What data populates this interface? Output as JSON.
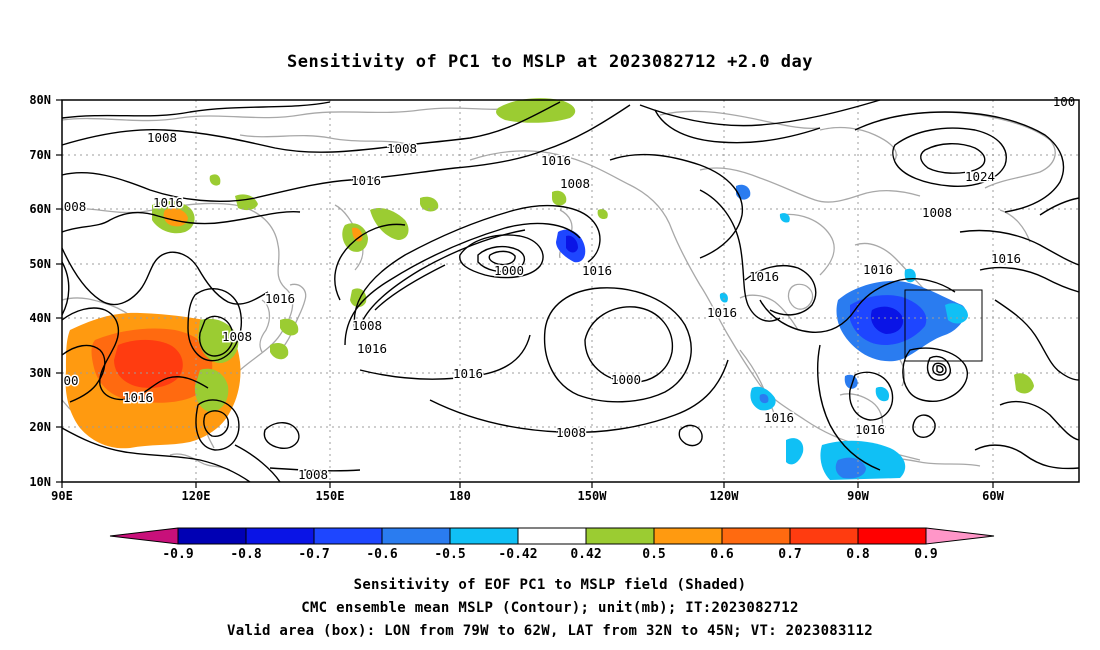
{
  "title": "Sensitivity of PC1 to MSLP at 2023082712 +2.0 day",
  "map": {
    "lat_ticks": [
      "80N",
      "70N",
      "60N",
      "50N",
      "40N",
      "30N",
      "20N",
      "10N"
    ],
    "lon_ticks": [
      "90E",
      "120E",
      "150E",
      "180",
      "150W",
      "120W",
      "90W",
      "60W"
    ],
    "contour_labels": [
      "1008",
      "1008",
      "1016",
      "1016",
      "1008",
      "1016",
      "1000",
      "1016",
      "1008",
      "1016",
      "1016",
      "1008",
      "1016",
      "1016",
      "1016",
      "1000",
      "1008",
      "1016",
      "1016",
      "1008",
      "1016",
      "1016",
      "1024",
      "1008",
      "1016",
      "1008",
      "1008",
      "1008",
      "1016",
      "00",
      "008",
      "100"
    ],
    "valid_box": {
      "lon_from": "79W",
      "lon_to": "62W",
      "lat_from": "32N",
      "lat_to": "45N"
    }
  },
  "colorbar": {
    "labels": [
      "-0.9",
      "-0.8",
      "-0.7",
      "-0.6",
      "-0.5",
      "-0.42",
      "0.42",
      "0.5",
      "0.6",
      "0.7",
      "0.8",
      "0.9"
    ],
    "colors": [
      "#0000b4",
      "#0a14e6",
      "#1e46ff",
      "#2a7cf0",
      "#10c0f5",
      "#ffffff",
      "#9bcc32",
      "#ff9a10",
      "#ff6a10",
      "#ff3c10",
      "#ff0000"
    ],
    "left_end_color": "#c8107a",
    "right_end_color": "#ff96c8"
  },
  "footer": {
    "line1": "Sensitivity of EOF PC1 to MSLP field (Shaded)",
    "line2": "CMC ensemble mean MSLP (Contour); unit(mb); IT:2023082712",
    "line3": "Valid area (box): LON from 79W to 62W, LAT from 32N to 45N; VT: 2023083112"
  }
}
